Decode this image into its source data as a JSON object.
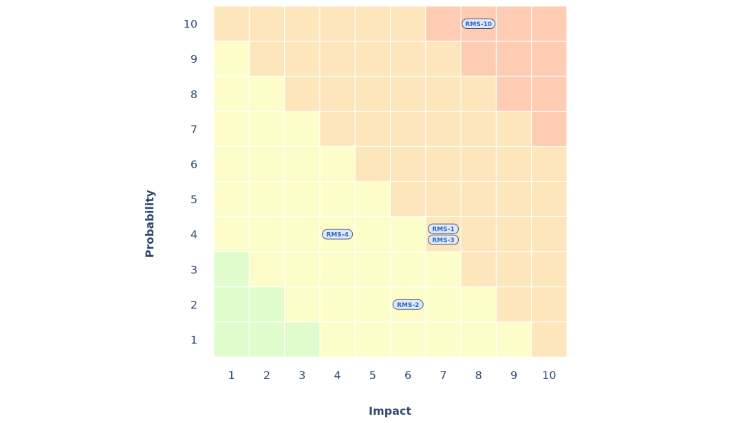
{
  "chart_data": {
    "type": "heatmap",
    "xlabel": "Impact",
    "ylabel": "Probability",
    "x_ticks": [
      "1",
      "2",
      "3",
      "4",
      "5",
      "6",
      "7",
      "8",
      "9",
      "10"
    ],
    "y_ticks": [
      "1",
      "2",
      "3",
      "4",
      "5",
      "6",
      "7",
      "8",
      "9",
      "10"
    ],
    "colors": {
      "green": "#e1fccc",
      "yellow": "#fdfdca",
      "orange": "#fde6bb",
      "red": "#feccb2"
    },
    "levels_top_to_bottom": [
      [
        "orange",
        "orange",
        "orange",
        "orange",
        "orange",
        "orange",
        "red",
        "red",
        "red",
        "red"
      ],
      [
        "yellow",
        "orange",
        "orange",
        "orange",
        "orange",
        "orange",
        "orange",
        "red",
        "red",
        "red"
      ],
      [
        "yellow",
        "yellow",
        "orange",
        "orange",
        "orange",
        "orange",
        "orange",
        "orange",
        "red",
        "red"
      ],
      [
        "yellow",
        "yellow",
        "yellow",
        "orange",
        "orange",
        "orange",
        "orange",
        "orange",
        "orange",
        "red"
      ],
      [
        "yellow",
        "yellow",
        "yellow",
        "yellow",
        "orange",
        "orange",
        "orange",
        "orange",
        "orange",
        "orange"
      ],
      [
        "yellow",
        "yellow",
        "yellow",
        "yellow",
        "yellow",
        "orange",
        "orange",
        "orange",
        "orange",
        "orange"
      ],
      [
        "yellow",
        "yellow",
        "yellow",
        "yellow",
        "yellow",
        "yellow",
        "orange",
        "orange",
        "orange",
        "orange"
      ],
      [
        "green",
        "yellow",
        "yellow",
        "yellow",
        "yellow",
        "yellow",
        "yellow",
        "orange",
        "orange",
        "orange"
      ],
      [
        "green",
        "green",
        "yellow",
        "yellow",
        "yellow",
        "yellow",
        "yellow",
        "yellow",
        "orange",
        "orange"
      ],
      [
        "green",
        "green",
        "green",
        "yellow",
        "yellow",
        "yellow",
        "yellow",
        "yellow",
        "yellow",
        "orange"
      ]
    ],
    "risks": [
      {
        "id": "RMS-10",
        "impact": 8,
        "probability": 10
      },
      {
        "id": "RMS-4",
        "impact": 4,
        "probability": 4
      },
      {
        "id": "RMS-1",
        "impact": 7,
        "probability": 4
      },
      {
        "id": "RMS-3",
        "impact": 7,
        "probability": 4
      },
      {
        "id": "RMS-2",
        "impact": 6,
        "probability": 2
      }
    ]
  }
}
